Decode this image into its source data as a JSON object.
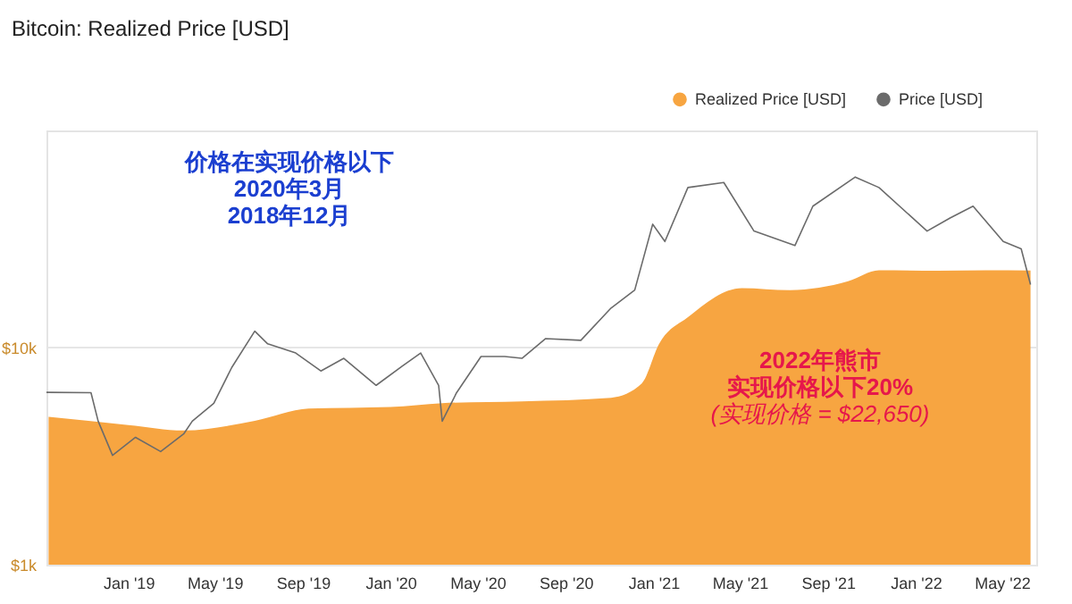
{
  "chart_data": {
    "type": "area",
    "title": "Bitcoin: Realized Price [USD]",
    "annotations": [
      "价格在实现价格以下",
      "2020年3月",
      "2018年12月",
      "2022年熊市",
      "实现价格以下20%",
      "(实现价格 = $22,650)"
    ],
    "series": [
      {
        "name": "Realized Price [USD]",
        "color": "#f7a541",
        "x": [
          "2018-09-12",
          "2019-01-01",
          "2019-03-19",
          "2019-06-26",
          "2019-09-09",
          "2020-01-01",
          "2020-03-13",
          "2020-07-02",
          "2020-11-03",
          "2020-12-16",
          "2021-01-09",
          "2021-02-18",
          "2021-05-04",
          "2021-07-10",
          "2021-09-29",
          "2021-11-11",
          "2022-02-01",
          "2022-04-09",
          "2022-06-10"
        ],
        "values": [
          4800,
          4400,
          4150,
          4600,
          5240,
          5330,
          5550,
          5650,
          5870,
          6840,
          10400,
          13800,
          18800,
          18400,
          20200,
          22700,
          22600,
          22700,
          22650
        ]
      },
      {
        "name": "Price [USD]",
        "type": "line",
        "color": "#6b6b6b",
        "x": [
          "2018-09-09",
          "2018-11-10",
          "2018-11-20",
          "2018-12-10",
          "2019-01-11",
          "2019-02-15",
          "2019-03-19",
          "2019-03-31",
          "2019-04-30",
          "2019-05-25",
          "2019-06-26",
          "2019-07-14",
          "2019-08-22",
          "2019-09-26",
          "2019-10-28",
          "2019-12-12",
          "2020-01-18",
          "2020-02-12",
          "2020-03-08",
          "2020-03-13",
          "2020-04-02",
          "2020-05-06",
          "2020-06-08",
          "2020-07-02",
          "2020-08-04",
          "2020-09-22",
          "2020-11-03",
          "2020-12-06",
          "2020-12-31",
          "2021-01-17",
          "2021-02-18",
          "2021-04-09",
          "2021-05-21",
          "2021-07-17",
          "2021-08-11",
          "2021-10-09",
          "2021-11-11",
          "2022-01-17",
          "2022-02-18",
          "2022-03-22",
          "2022-05-03",
          "2022-05-28",
          "2022-06-10"
        ],
        "values": [
          6220,
          6200,
          4580,
          3190,
          3860,
          3320,
          4000,
          4580,
          5540,
          8100,
          11900,
          10400,
          9440,
          7800,
          8920,
          6700,
          8250,
          9440,
          6700,
          4580,
          6200,
          9100,
          9100,
          8920,
          11000,
          10800,
          15200,
          18400,
          37000,
          30800,
          54600,
          57600,
          34400,
          29500,
          44800,
          61000,
          54600,
          34400,
          39500,
          44800,
          30800,
          28500,
          19500
        ]
      }
    ],
    "xlim": [
      "2018-09-09",
      "2022-06-18"
    ],
    "xticks": [
      {
        "value": "2019-01-01",
        "label": "Jan '19"
      },
      {
        "value": "2019-05-01",
        "label": "May '19"
      },
      {
        "value": "2019-09-01",
        "label": "Sep '19"
      },
      {
        "value": "2020-01-01",
        "label": "Jan '20"
      },
      {
        "value": "2020-05-01",
        "label": "May '20"
      },
      {
        "value": "2020-09-01",
        "label": "Sep '20"
      },
      {
        "value": "2021-01-01",
        "label": "Jan '21"
      },
      {
        "value": "2021-05-01",
        "label": "May '21"
      },
      {
        "value": "2021-09-01",
        "label": "Sep '21"
      },
      {
        "value": "2022-01-01",
        "label": "Jan '22"
      },
      {
        "value": "2022-05-01",
        "label": "May '22"
      }
    ],
    "ylim": [
      1000,
      100000
    ],
    "yticks": [
      {
        "value": 1000,
        "label": "$1k"
      },
      {
        "value": 10000,
        "label": "$10k"
      }
    ],
    "log": "y",
    "grid": "y",
    "legend": "top right"
  }
}
